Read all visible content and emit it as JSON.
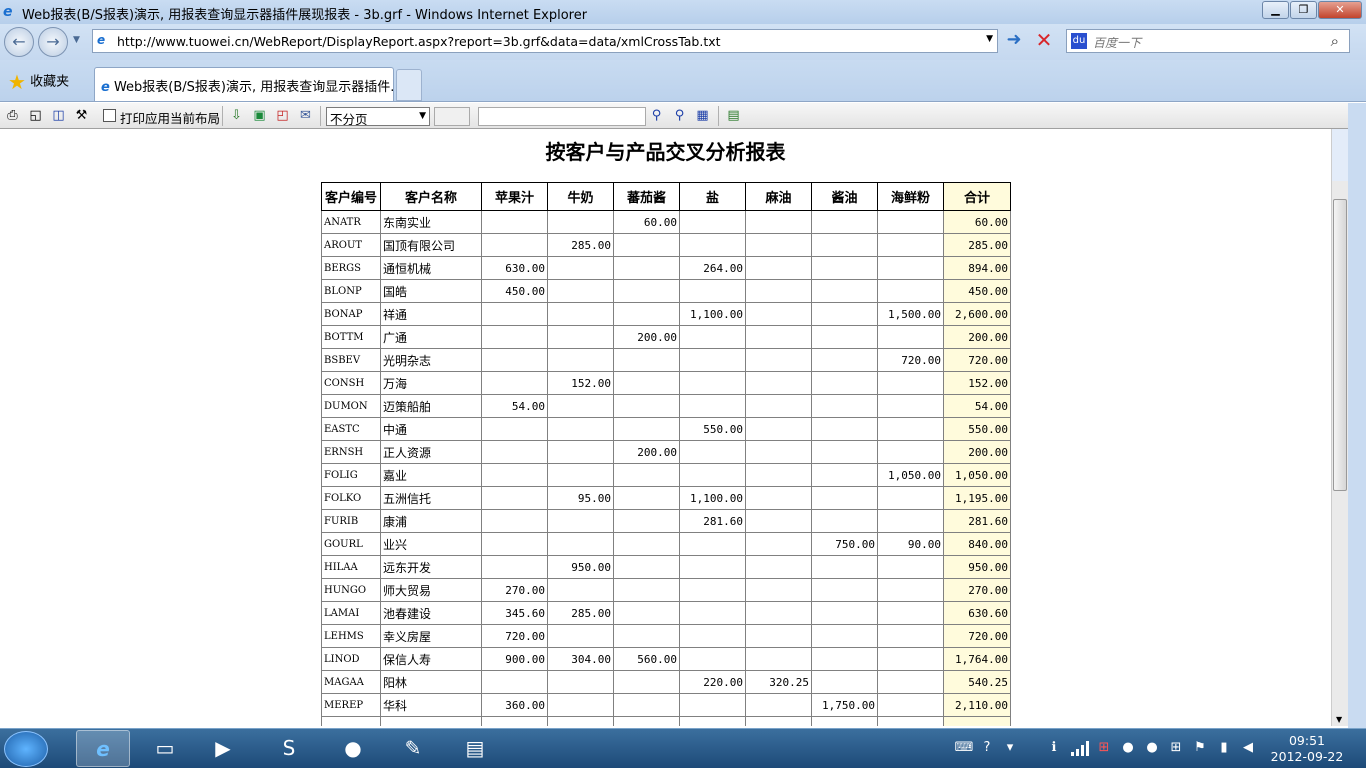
{
  "window": {
    "title": "Web报表(B/S报表)演示, 用报表查询显示器插件展现报表 - 3b.grf - Windows Internet Explorer",
    "minimize": "▁",
    "restore": "❐",
    "close": "✕"
  },
  "address": {
    "url": "http://www.tuowei.cn/WebReport/DisplayReport.aspx?report=3b.grf&data=data/xmlCrossTab.txt",
    "search_placeholder": "百度一下"
  },
  "favorites": {
    "label": "收藏夹"
  },
  "tab": {
    "label": "Web报表(B/S报表)演示, 用报表查询显示器插件..."
  },
  "toolbar": {
    "print_layout_label": "打印应用当前布局",
    "paging_select": "不分页",
    "icons": [
      "printer-icon",
      "print-preview-icon",
      "book-icon",
      "tools-icon",
      "export-icon",
      "excel-icon",
      "pdf-icon",
      "email-icon",
      "find-icon",
      "find-next-icon",
      "find-in-table-icon",
      "calculator-icon"
    ]
  },
  "report": {
    "title": "按客户与产品交叉分析报表",
    "headers": [
      "客户编号",
      "客户名称",
      "苹果汁",
      "牛奶",
      "蕃茄酱",
      "盐",
      "麻油",
      "酱油",
      "海鲜粉",
      "合计"
    ],
    "rows": [
      [
        "ANATR",
        "东南实业",
        "",
        "",
        "60.00",
        "",
        "",
        "",
        "",
        "60.00"
      ],
      [
        "AROUT",
        "国顶有限公司",
        "",
        "285.00",
        "",
        "",
        "",
        "",
        "",
        "285.00"
      ],
      [
        "BERGS",
        "通恒机械",
        "630.00",
        "",
        "",
        "264.00",
        "",
        "",
        "",
        "894.00"
      ],
      [
        "BLONP",
        "国皓",
        "450.00",
        "",
        "",
        "",
        "",
        "",
        "",
        "450.00"
      ],
      [
        "BONAP",
        "祥通",
        "",
        "",
        "",
        "1,100.00",
        "",
        "",
        "1,500.00",
        "2,600.00"
      ],
      [
        "BOTTM",
        "广通",
        "",
        "",
        "200.00",
        "",
        "",
        "",
        "",
        "200.00"
      ],
      [
        "BSBEV",
        "光明杂志",
        "",
        "",
        "",
        "",
        "",
        "",
        "720.00",
        "720.00"
      ],
      [
        "CONSH",
        "万海",
        "",
        "152.00",
        "",
        "",
        "",
        "",
        "",
        "152.00"
      ],
      [
        "DUMON",
        "迈策船舶",
        "54.00",
        "",
        "",
        "",
        "",
        "",
        "",
        "54.00"
      ],
      [
        "EASTC",
        "中通",
        "",
        "",
        "",
        "550.00",
        "",
        "",
        "",
        "550.00"
      ],
      [
        "ERNSH",
        "正人资源",
        "",
        "",
        "200.00",
        "",
        "",
        "",
        "",
        "200.00"
      ],
      [
        "FOLIG",
        "嘉业",
        "",
        "",
        "",
        "",
        "",
        "",
        "1,050.00",
        "1,050.00"
      ],
      [
        "FOLKO",
        "五洲信托",
        "",
        "95.00",
        "",
        "1,100.00",
        "",
        "",
        "",
        "1,195.00"
      ],
      [
        "FURIB",
        "康浦",
        "",
        "",
        "",
        "281.60",
        "",
        "",
        "",
        "281.60"
      ],
      [
        "GOURL",
        "业兴",
        "",
        "",
        "",
        "",
        "",
        "750.00",
        "90.00",
        "840.00"
      ],
      [
        "HILAA",
        "远东开发",
        "",
        "950.00",
        "",
        "",
        "",
        "",
        "",
        "950.00"
      ],
      [
        "HUNGO",
        "师大贸易",
        "270.00",
        "",
        "",
        "",
        "",
        "",
        "",
        "270.00"
      ],
      [
        "LAMAI",
        "池春建设",
        "345.60",
        "285.00",
        "",
        "",
        "",
        "",
        "",
        "630.60"
      ],
      [
        "LEHMS",
        "幸义房屋",
        "720.00",
        "",
        "",
        "",
        "",
        "",
        "",
        "720.00"
      ],
      [
        "LINOD",
        "保信人寿",
        "900.00",
        "304.00",
        "560.00",
        "",
        "",
        "",
        "",
        "1,764.00"
      ],
      [
        "MAGAA",
        "阳林",
        "",
        "",
        "",
        "220.00",
        "320.25",
        "",
        "",
        "540.25"
      ],
      [
        "MEREP",
        "华科",
        "360.00",
        "",
        "",
        "",
        "",
        "1,750.00",
        "",
        "2,110.00"
      ],
      [
        "",
        "",
        "",
        "",
        "",
        "",
        "",
        "",
        "",
        ""
      ]
    ],
    "total_column_color": "#fffbdc"
  },
  "taskbar": {
    "time": "09:51",
    "date": "2012-09-22"
  }
}
